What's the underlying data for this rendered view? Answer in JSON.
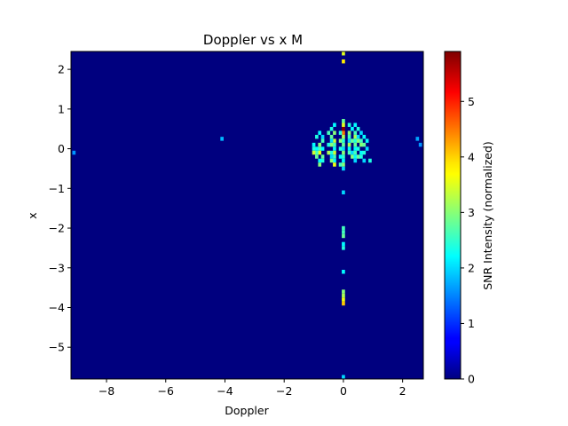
{
  "chart_data": {
    "type": "heatmap",
    "title": "Doppler vs x M",
    "xlabel": "Doppler",
    "ylabel": "x",
    "xlim": [
      -9.2,
      2.7
    ],
    "ylim": [
      -5.8,
      2.45
    ],
    "xticks": [
      -8,
      -6,
      -4,
      -2,
      0,
      2
    ],
    "xtick_labels": [
      "−8",
      "−6",
      "−4",
      "−2",
      "0",
      "2"
    ],
    "yticks": [
      -5,
      -4,
      -3,
      -2,
      -1,
      0,
      1,
      2
    ],
    "ytick_labels": [
      "−5",
      "−4",
      "−3",
      "−2",
      "−1",
      "0",
      "1",
      "2"
    ],
    "colormap": "jet",
    "background_value": 0,
    "colorbar": {
      "label": "SNR Intensity (normalized)",
      "range": [
        0,
        5.9
      ],
      "ticks": [
        0,
        1,
        2,
        3,
        4,
        5
      ],
      "tick_labels": [
        "0",
        "1",
        "2",
        "3",
        "4",
        "5"
      ]
    },
    "grid": false,
    "cell_size": [
      0.11,
      0.1
    ],
    "cells": [
      [
        0.0,
        2.4,
        3.5
      ],
      [
        0.0,
        2.2,
        3.8
      ],
      [
        0.0,
        0.7,
        2.8
      ],
      [
        0.0,
        0.6,
        3.5
      ],
      [
        0.0,
        0.5,
        5.9
      ],
      [
        0.0,
        0.4,
        4.5
      ],
      [
        0.0,
        0.3,
        3.2
      ],
      [
        0.0,
        0.2,
        2.4
      ],
      [
        0.0,
        0.1,
        2.8
      ],
      [
        0.0,
        0.0,
        2.0
      ],
      [
        0.0,
        -0.1,
        3.0
      ],
      [
        0.0,
        -0.2,
        2.5
      ],
      [
        0.0,
        -0.3,
        2.2
      ],
      [
        0.0,
        -0.4,
        3.0
      ],
      [
        0.0,
        -0.5,
        2.0
      ],
      [
        0.0,
        -1.1,
        2.0
      ],
      [
        0.0,
        -2.0,
        2.6
      ],
      [
        0.0,
        -2.1,
        2.6
      ],
      [
        0.0,
        -2.2,
        2.8
      ],
      [
        0.0,
        -2.4,
        2.2
      ],
      [
        0.0,
        -2.5,
        2.4
      ],
      [
        0.0,
        -3.1,
        2.2
      ],
      [
        0.0,
        -3.6,
        3.0
      ],
      [
        0.0,
        -3.7,
        3.2
      ],
      [
        0.0,
        -3.8,
        3.6
      ],
      [
        0.0,
        -3.9,
        4.0
      ],
      [
        0.0,
        -5.75,
        2.0
      ],
      [
        -0.1,
        0.4,
        2.4
      ],
      [
        -0.1,
        0.2,
        3.0
      ],
      [
        -0.1,
        0.0,
        2.4
      ],
      [
        -0.1,
        -0.2,
        2.2
      ],
      [
        -0.1,
        -0.4,
        2.6
      ],
      [
        -0.3,
        0.6,
        2.2
      ],
      [
        -0.3,
        0.4,
        3.0
      ],
      [
        -0.3,
        0.2,
        3.4
      ],
      [
        -0.3,
        0.1,
        2.6
      ],
      [
        -0.3,
        0.0,
        2.2
      ],
      [
        -0.3,
        -0.1,
        3.4
      ],
      [
        -0.3,
        -0.2,
        2.6
      ],
      [
        -0.3,
        -0.3,
        2.2
      ],
      [
        -0.3,
        -0.4,
        3.6
      ],
      [
        -0.4,
        0.5,
        2.4
      ],
      [
        -0.4,
        0.3,
        2.8
      ],
      [
        -0.4,
        0.2,
        2.0
      ],
      [
        -0.4,
        0.1,
        3.0
      ],
      [
        -0.4,
        -0.1,
        2.4
      ],
      [
        -0.4,
        -0.2,
        2.0
      ],
      [
        -0.4,
        -0.3,
        3.0
      ],
      [
        -0.5,
        0.4,
        2.6
      ],
      [
        -0.5,
        0.1,
        2.4
      ],
      [
        -0.5,
        -0.1,
        3.2
      ],
      [
        -0.7,
        0.3,
        2.0
      ],
      [
        -0.7,
        0.2,
        2.6
      ],
      [
        -0.7,
        0.0,
        2.2
      ],
      [
        -0.7,
        -0.2,
        2.8
      ],
      [
        -0.7,
        -0.3,
        2.4
      ],
      [
        -0.8,
        0.4,
        2.2
      ],
      [
        -0.8,
        0.1,
        3.0
      ],
      [
        -0.8,
        0.0,
        2.6
      ],
      [
        -0.8,
        -0.1,
        3.6
      ],
      [
        -0.8,
        -0.3,
        2.2
      ],
      [
        -0.8,
        -0.4,
        3.0
      ],
      [
        -0.9,
        0.3,
        2.4
      ],
      [
        -0.9,
        0.0,
        2.2
      ],
      [
        -0.9,
        -0.1,
        2.6
      ],
      [
        -0.9,
        -0.2,
        2.8
      ],
      [
        -1.0,
        0.1,
        2.2
      ],
      [
        -1.0,
        0.0,
        2.4
      ],
      [
        -1.0,
        -0.1,
        3.4
      ],
      [
        0.2,
        0.6,
        2.4
      ],
      [
        0.2,
        0.4,
        3.0
      ],
      [
        0.2,
        0.3,
        2.6
      ],
      [
        0.2,
        0.2,
        2.0
      ],
      [
        0.2,
        0.1,
        3.2
      ],
      [
        0.2,
        0.0,
        2.2
      ],
      [
        0.2,
        -0.1,
        2.6
      ],
      [
        0.3,
        0.5,
        2.2
      ],
      [
        0.3,
        0.2,
        2.8
      ],
      [
        0.3,
        -0.1,
        2.0
      ],
      [
        0.3,
        -0.2,
        3.0
      ],
      [
        0.4,
        0.6,
        2.2
      ],
      [
        0.4,
        0.4,
        2.6
      ],
      [
        0.4,
        0.3,
        3.2
      ],
      [
        0.4,
        0.2,
        2.4
      ],
      [
        0.4,
        0.1,
        2.8
      ],
      [
        0.4,
        0.0,
        2.2
      ],
      [
        0.4,
        -0.1,
        2.6
      ],
      [
        0.4,
        -0.2,
        2.2
      ],
      [
        0.4,
        -0.3,
        2.0
      ],
      [
        0.5,
        0.5,
        2.4
      ],
      [
        0.5,
        0.3,
        2.0
      ],
      [
        0.5,
        0.2,
        3.0
      ],
      [
        0.5,
        0.0,
        2.4
      ],
      [
        0.5,
        -0.2,
        2.8
      ],
      [
        0.6,
        0.4,
        2.0
      ],
      [
        0.6,
        0.2,
        2.6
      ],
      [
        0.6,
        0.1,
        3.0
      ],
      [
        0.6,
        -0.1,
        2.2
      ],
      [
        0.6,
        -0.2,
        2.4
      ],
      [
        0.7,
        0.3,
        2.2
      ],
      [
        0.7,
        0.1,
        2.8
      ],
      [
        0.7,
        -0.1,
        2.4
      ],
      [
        0.7,
        -0.3,
        2.0
      ],
      [
        0.8,
        0.2,
        2.2
      ],
      [
        0.8,
        0.0,
        2.0
      ],
      [
        0.9,
        -0.3,
        2.4
      ],
      [
        -4.1,
        0.25,
        1.8
      ],
      [
        -9.1,
        -0.1,
        1.6
      ],
      [
        2.5,
        0.25,
        1.7
      ],
      [
        2.6,
        0.1,
        1.6
      ]
    ]
  }
}
